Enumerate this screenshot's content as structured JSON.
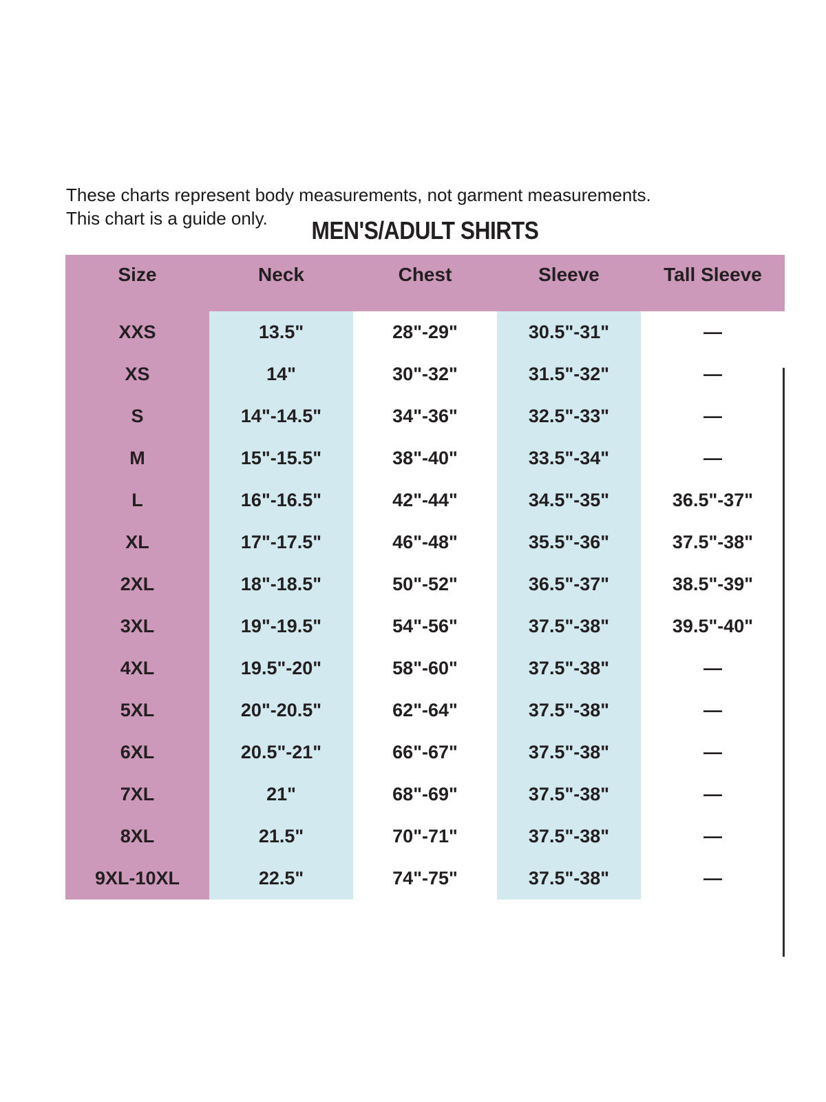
{
  "note": {
    "line1": "These charts represent body measurements, not garment measurements.",
    "line2": "This chart is a guide only."
  },
  "title": "MEN'S/ADULT SHIRTS",
  "table": {
    "columns": [
      "Size",
      "Neck",
      "Chest",
      "Sleeve",
      "Tall Sleeve"
    ],
    "rows": [
      {
        "size": "XXS",
        "neck": "13.5\"",
        "chest": "28\"-29\"",
        "sleeve": "30.5\"-31\"",
        "tall_sleeve": "—"
      },
      {
        "size": "XS",
        "neck": "14\"",
        "chest": "30\"-32\"",
        "sleeve": "31.5\"-32\"",
        "tall_sleeve": "—"
      },
      {
        "size": "S",
        "neck": "14\"-14.5\"",
        "chest": "34\"-36\"",
        "sleeve": "32.5\"-33\"",
        "tall_sleeve": "—"
      },
      {
        "size": "M",
        "neck": "15\"-15.5\"",
        "chest": "38\"-40\"",
        "sleeve": "33.5\"-34\"",
        "tall_sleeve": "—"
      },
      {
        "size": "L",
        "neck": "16\"-16.5\"",
        "chest": "42\"-44\"",
        "sleeve": "34.5\"-35\"",
        "tall_sleeve": "36.5\"-37\""
      },
      {
        "size": "XL",
        "neck": "17\"-17.5\"",
        "chest": "46\"-48\"",
        "sleeve": "35.5\"-36\"",
        "tall_sleeve": "37.5\"-38\""
      },
      {
        "size": "2XL",
        "neck": "18\"-18.5\"",
        "chest": "50\"-52\"",
        "sleeve": "36.5\"-37\"",
        "tall_sleeve": "38.5\"-39\""
      },
      {
        "size": "3XL",
        "neck": "19\"-19.5\"",
        "chest": "54\"-56\"",
        "sleeve": "37.5\"-38\"",
        "tall_sleeve": "39.5\"-40\""
      },
      {
        "size": "4XL",
        "neck": "19.5\"-20\"",
        "chest": "58\"-60\"",
        "sleeve": "37.5\"-38\"",
        "tall_sleeve": "—"
      },
      {
        "size": "5XL",
        "neck": "20\"-20.5\"",
        "chest": "62\"-64\"",
        "sleeve": "37.5\"-38\"",
        "tall_sleeve": "—"
      },
      {
        "size": "6XL",
        "neck": "20.5\"-21\"",
        "chest": "66\"-67\"",
        "sleeve": "37.5\"-38\"",
        "tall_sleeve": "—"
      },
      {
        "size": "7XL",
        "neck": "21\"",
        "chest": "68\"-69\"",
        "sleeve": "37.5\"-38\"",
        "tall_sleeve": "—"
      },
      {
        "size": "8XL",
        "neck": "21.5\"",
        "chest": "70\"-71\"",
        "sleeve": "37.5\"-38\"",
        "tall_sleeve": "—"
      },
      {
        "size": "9XL-10XL",
        "neck": "22.5\"",
        "chest": "74\"-75\"",
        "sleeve": "37.5\"-38\"",
        "tall_sleeve": "—"
      }
    ]
  },
  "colors": {
    "header-pink": "#cd99ba",
    "cell-blue": "#d2e9f0",
    "text": "#231f20",
    "divider": "#2e2e2e"
  }
}
